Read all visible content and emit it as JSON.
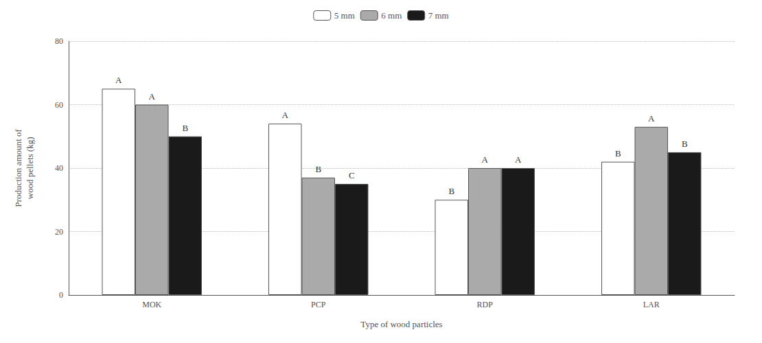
{
  "chart_data": {
    "type": "bar",
    "categories": [
      "MOK",
      "PCP",
      "RDP",
      "LAR"
    ],
    "series": [
      {
        "name": "5 mm",
        "color": "#ffffff",
        "values": [
          65,
          54,
          30,
          42
        ],
        "annotations": [
          "A",
          "A",
          "B",
          "B"
        ]
      },
      {
        "name": "6 mm",
        "color": "#aaaaaa",
        "values": [
          60,
          37,
          40,
          53
        ],
        "annotations": [
          "A",
          "B",
          "A",
          "A"
        ]
      },
      {
        "name": "7 mm",
        "color": "#1a1a1a",
        "values": [
          50,
          35,
          40,
          45
        ],
        "annotations": [
          "B",
          "C",
          "A",
          "B"
        ]
      }
    ],
    "xlabel": "Type of wood particles",
    "ylabel": "Production amount of\nwood pellets (kg)",
    "ylim": [
      0,
      80
    ],
    "yticks": [
      0,
      20,
      40,
      60,
      80
    ],
    "grid": true,
    "legend": "top"
  }
}
